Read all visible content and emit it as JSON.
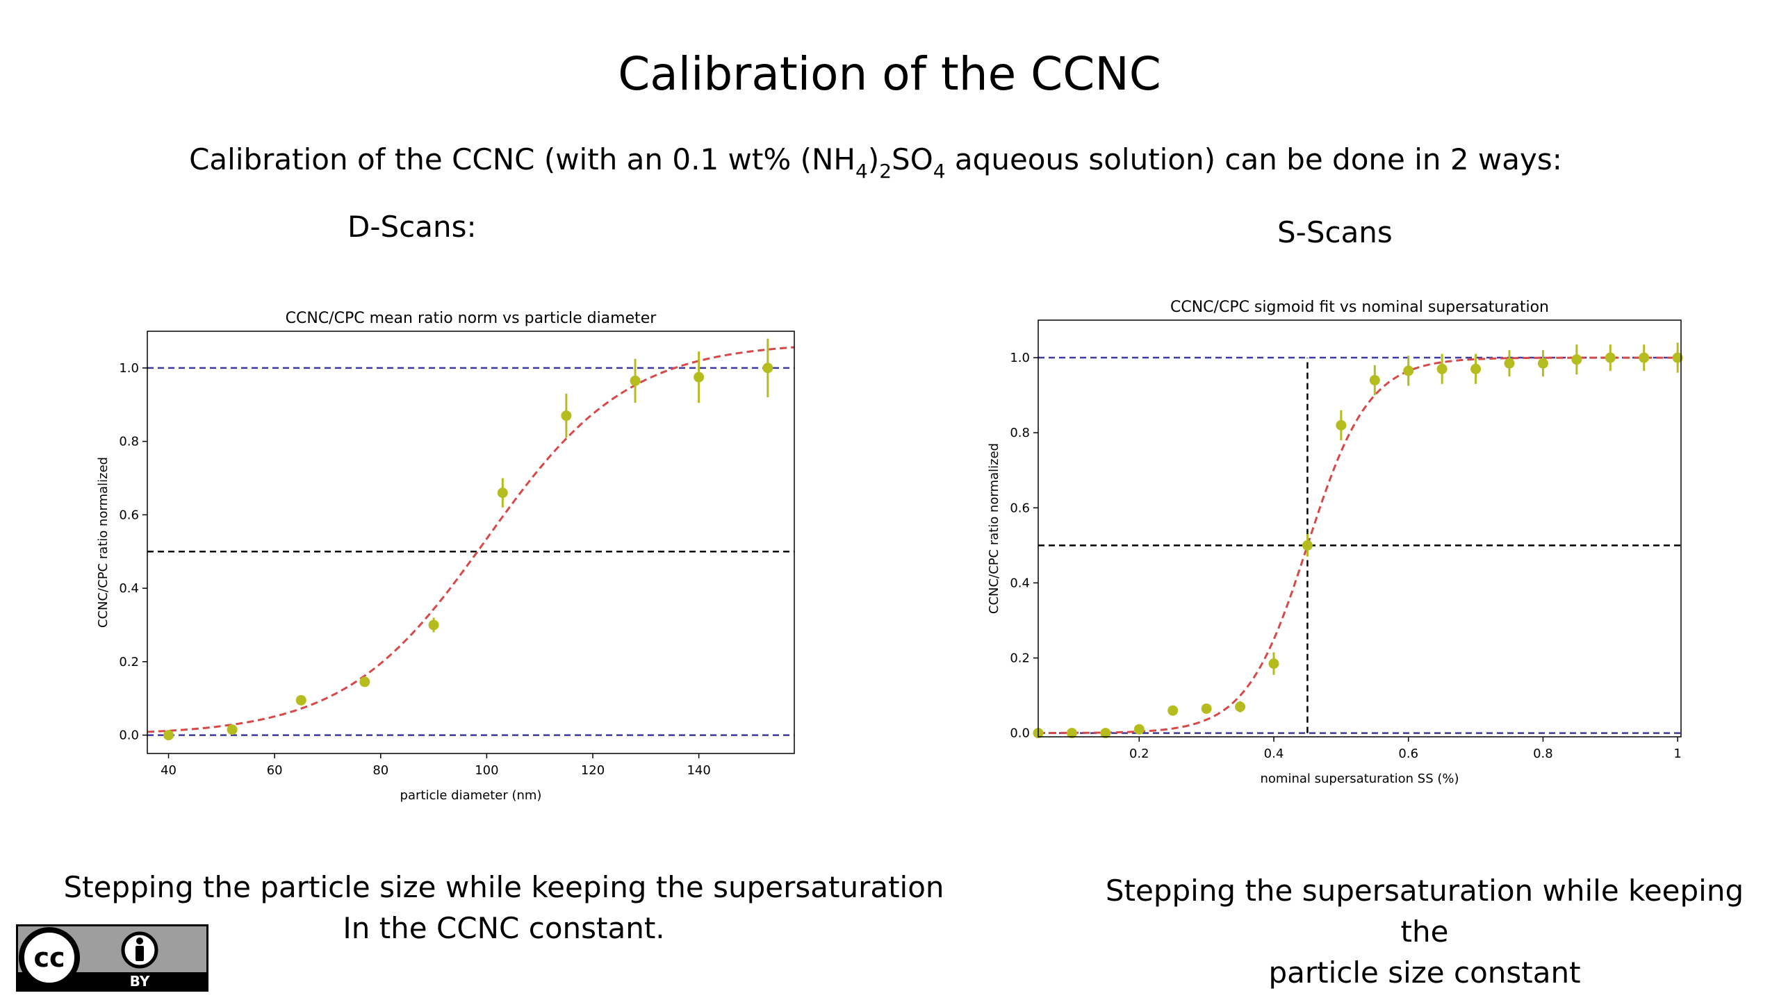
{
  "slide": {
    "title": "Calibration of the CCNC",
    "subtitle_pre": "Calibration of the CCNC (with an 0.1 wt% (NH",
    "subtitle_sub1": "4",
    "subtitle_mid1": ")",
    "subtitle_sub2": "2",
    "subtitle_mid2": "SO",
    "subtitle_sub3": "4",
    "subtitle_post": " aqueous solution) can be done in 2 ways:",
    "left_label": "D-Scans:",
    "right_label": "S-Scans",
    "left_caption_line1": "Stepping the particle size while keeping the supersaturation",
    "left_caption_line2": "In the CCNC constant.",
    "right_caption_line1": "Stepping the supersaturation while keeping the",
    "right_caption_line2": "particle size constant",
    "license_badge_text": "BY"
  },
  "chart_data": [
    {
      "type": "scatter",
      "title": "CCNC/CPC mean ratio norm vs particle diameter",
      "xlabel": "particle diameter (nm)",
      "ylabel": "CCNC/CPC ratio normalized",
      "xlim": [
        36,
        158
      ],
      "ylim": [
        -0.05,
        1.1
      ],
      "xticks": [
        40,
        60,
        80,
        100,
        120,
        140
      ],
      "yticks": [
        0.0,
        0.2,
        0.4,
        0.6,
        0.8,
        1.0
      ],
      "ytick_labels": [
        "0.0",
        "0.2",
        "0.4",
        "0.6",
        "0.8",
        "1.0"
      ],
      "grid": false,
      "colors": {
        "points": "#b5bd1e",
        "fit": "#d94848",
        "hlines": "#3a3aa0",
        "midline": "#000000"
      },
      "points": [
        {
          "x": 40,
          "y": 0.0,
          "err": 0.0
        },
        {
          "x": 52,
          "y": 0.015,
          "err": 0.01
        },
        {
          "x": 65,
          "y": 0.095,
          "err": 0.01
        },
        {
          "x": 77,
          "y": 0.145,
          "err": 0.01
        },
        {
          "x": 90,
          "y": 0.3,
          "err": 0.02
        },
        {
          "x": 103,
          "y": 0.66,
          "err": 0.04
        },
        {
          "x": 115,
          "y": 0.87,
          "err": 0.06
        },
        {
          "x": 128,
          "y": 0.965,
          "err": 0.06
        },
        {
          "x": 140,
          "y": 0.975,
          "err": 0.07
        },
        {
          "x": 153,
          "y": 1.0,
          "err": 0.08
        }
      ],
      "fit": {
        "type": "sigmoid",
        "a": 1.07,
        "x50": 100,
        "k": 0.075
      },
      "dashed_hlines": [
        0.0,
        1.0
      ],
      "mid_hline": 0.5
    },
    {
      "type": "scatter",
      "title": "CCNC/CPC sigmoid fit vs nominal supersaturation",
      "xlabel": "nominal supersaturation SS (%)",
      "ylabel": "CCNC/CPC ratio normalized",
      "xlim": [
        0.05,
        1.005
      ],
      "ylim": [
        -0.01,
        1.1
      ],
      "xticks": [
        0.2,
        0.4,
        0.6,
        0.8,
        1.0
      ],
      "yticks": [
        0.0,
        0.2,
        0.4,
        0.6,
        0.8,
        1.0
      ],
      "ytick_labels": [
        "0.0",
        "0.2",
        "0.4",
        "0.6",
        "0.8",
        "1.0"
      ],
      "grid": false,
      "colors": {
        "points": "#b5bd1e",
        "fit": "#d94848",
        "hlines": "#3a3aa0",
        "midline": "#000000"
      },
      "points": [
        {
          "x": 0.05,
          "y": 0.0,
          "err": 0.0
        },
        {
          "x": 0.1,
          "y": 0.0,
          "err": 0.0
        },
        {
          "x": 0.15,
          "y": 0.0,
          "err": 0.0
        },
        {
          "x": 0.2,
          "y": 0.01,
          "err": 0.01
        },
        {
          "x": 0.25,
          "y": 0.06,
          "err": 0.01
        },
        {
          "x": 0.3,
          "y": 0.065,
          "err": 0.01
        },
        {
          "x": 0.35,
          "y": 0.07,
          "err": 0.015
        },
        {
          "x": 0.4,
          "y": 0.185,
          "err": 0.03
        },
        {
          "x": 0.45,
          "y": 0.5,
          "err": 0.03
        },
        {
          "x": 0.5,
          "y": 0.82,
          "err": 0.04
        },
        {
          "x": 0.55,
          "y": 0.94,
          "err": 0.04
        },
        {
          "x": 0.6,
          "y": 0.965,
          "err": 0.04
        },
        {
          "x": 0.65,
          "y": 0.97,
          "err": 0.04
        },
        {
          "x": 0.7,
          "y": 0.97,
          "err": 0.04
        },
        {
          "x": 0.75,
          "y": 0.985,
          "err": 0.035
        },
        {
          "x": 0.8,
          "y": 0.985,
          "err": 0.035
        },
        {
          "x": 0.85,
          "y": 0.995,
          "err": 0.04
        },
        {
          "x": 0.9,
          "y": 1.0,
          "err": 0.035
        },
        {
          "x": 0.95,
          "y": 1.0,
          "err": 0.035
        },
        {
          "x": 1.0,
          "y": 1.0,
          "err": 0.04
        }
      ],
      "fit": {
        "type": "sigmoid",
        "a": 1.0,
        "x50": 0.45,
        "k": 22
      },
      "dashed_hlines": [
        0.0,
        1.0
      ],
      "mid_hline": 0.5,
      "mid_vline": 0.45
    }
  ]
}
